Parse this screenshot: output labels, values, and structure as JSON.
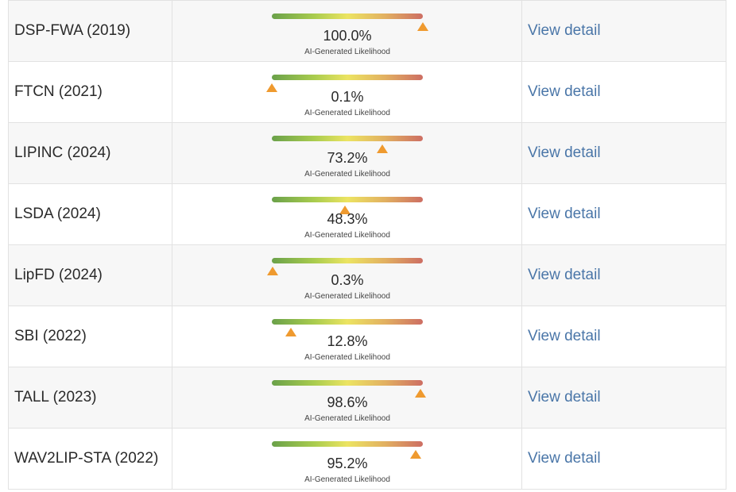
{
  "rows": [
    {
      "name": "DSP-FWA (2019)",
      "likelihood": 100.0,
      "percent_text": "100.0%",
      "caption": "AI-Generated Likelihood",
      "link": "View detail"
    },
    {
      "name": "FTCN (2021)",
      "likelihood": 0.1,
      "percent_text": "0.1%",
      "caption": "AI-Generated Likelihood",
      "link": "View detail"
    },
    {
      "name": "LIPINC (2024)",
      "likelihood": 73.2,
      "percent_text": "73.2%",
      "caption": "AI-Generated Likelihood",
      "link": "View detail"
    },
    {
      "name": "LSDA (2024)",
      "likelihood": 48.3,
      "percent_text": "48.3%",
      "caption": "AI-Generated Likelihood",
      "link": "View detail"
    },
    {
      "name": "LipFD (2024)",
      "likelihood": 0.3,
      "percent_text": "0.3%",
      "caption": "AI-Generated Likelihood",
      "link": "View detail"
    },
    {
      "name": "SBI (2022)",
      "likelihood": 12.8,
      "percent_text": "12.8%",
      "caption": "AI-Generated Likelihood",
      "link": "View detail"
    },
    {
      "name": "TALL (2023)",
      "likelihood": 98.6,
      "percent_text": "98.6%",
      "caption": "AI-Generated Likelihood",
      "link": "View detail"
    },
    {
      "name": "WAV2LIP-STA (2022)",
      "likelihood": 95.2,
      "percent_text": "95.2%",
      "caption": "AI-Generated Likelihood",
      "link": "View detail"
    }
  ],
  "colors": {
    "link": "#4a76a8",
    "marker": "#ef9a2f",
    "gradient_start": "#6aa14a",
    "gradient_mid": "#ece462",
    "gradient_end": "#cd6e63"
  }
}
